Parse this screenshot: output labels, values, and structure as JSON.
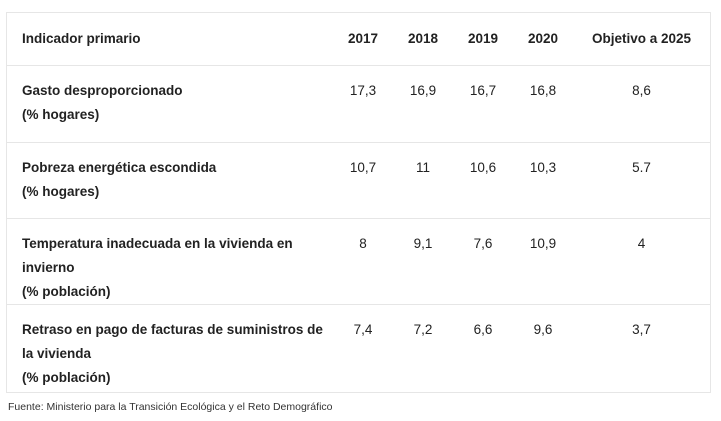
{
  "table": {
    "headers": [
      "Indicador primario",
      "2017",
      "2018",
      "2019",
      "2020",
      "Objetivo a 2025"
    ],
    "rows": [
      {
        "name": "Gasto desproporcionado",
        "unit": "(% hogares)",
        "values": [
          "17,3",
          "16,9",
          "16,7",
          "16,8",
          "8,6"
        ]
      },
      {
        "name": "Pobreza energética escondida",
        "unit": "(% hogares)",
        "values": [
          "10,7",
          "11",
          "10,6",
          "10,3",
          "5.7"
        ]
      },
      {
        "name": "Temperatura inadecuada en la vivienda en invierno",
        "unit": "(% población)",
        "values": [
          "8",
          "9,1",
          "7,6",
          "10,9",
          "4"
        ]
      },
      {
        "name": "Retraso en pago de facturas de suministros de la vivienda",
        "unit": "(% población)",
        "values": [
          "7,4",
          "7,2",
          "6,6",
          "9,6",
          "3,7"
        ]
      }
    ]
  },
  "source": "Fuente: Ministerio para la Transición Ecológica y el Reto Demográfico"
}
